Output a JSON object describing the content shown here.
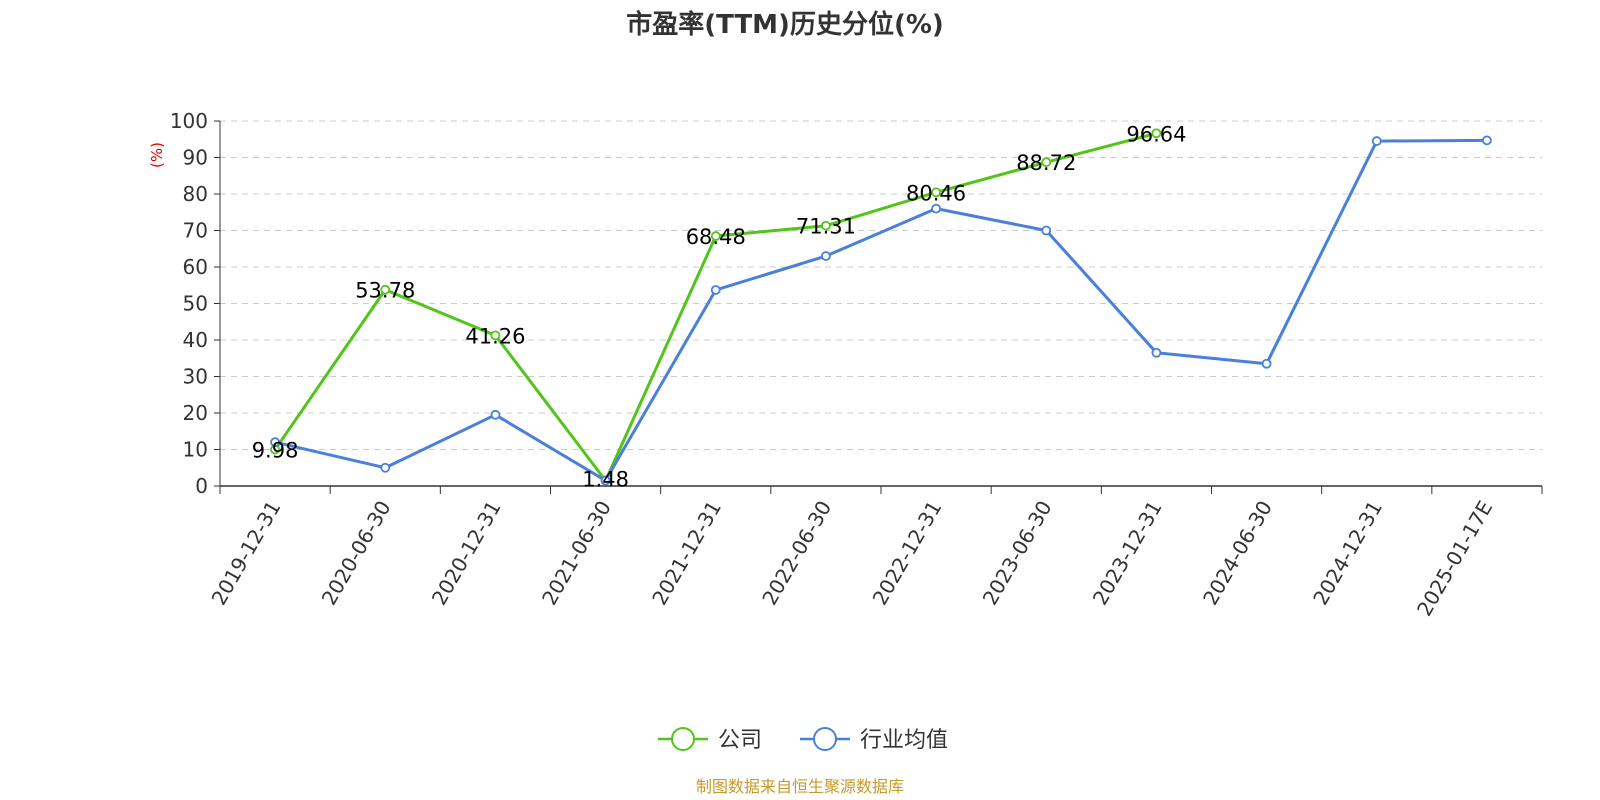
{
  "chart_data": {
    "type": "line",
    "title": "市盈率(TTM)历史分位(%)",
    "ylabel": "(%)",
    "xlabel": "",
    "ylim": [
      0,
      100
    ],
    "yticks": [
      0,
      10,
      20,
      30,
      40,
      50,
      60,
      70,
      80,
      90,
      100
    ],
    "grid": "horizontal-dashed",
    "legend_position": "bottom-center",
    "categories": [
      "2019-12-31",
      "2020-06-30",
      "2020-12-31",
      "2021-06-30",
      "2021-12-31",
      "2022-06-30",
      "2022-12-31",
      "2023-06-30",
      "2023-12-31",
      "2024-06-30",
      "2024-12-31",
      "2025-01-17E"
    ],
    "series": [
      {
        "name": "公司",
        "color": "#52c41a",
        "values": [
          9.98,
          53.78,
          41.26,
          1.48,
          68.48,
          71.31,
          80.46,
          88.72,
          96.64,
          null,
          null,
          null
        ]
      },
      {
        "name": "行业均值",
        "color": "#4a7fdb",
        "values": [
          12,
          5,
          19.5,
          1.5,
          53.7,
          63,
          76,
          70,
          36.5,
          33.5,
          94.5,
          94.7
        ]
      }
    ],
    "data_labels": {
      "公司": [
        "9.98",
        "53.78",
        "41.26",
        "1.48",
        "68.48",
        "71.31",
        "80.46",
        "88.72",
        "96.64"
      ]
    },
    "source": "制图数据来自恒生聚源数据库",
    "source_color": "#c89a2a",
    "ylabel_color": "#e00000"
  }
}
